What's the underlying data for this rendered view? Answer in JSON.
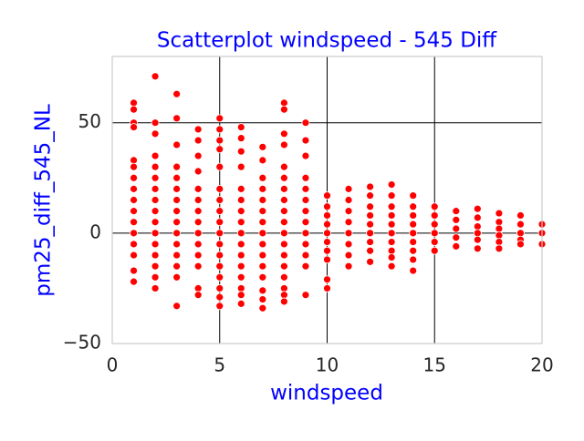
{
  "chart_data": {
    "type": "scatter",
    "title": "Scatterplot windspeed - 545 Diff",
    "x_label": "windspeed",
    "y_label": "pm25_diff_545_NL",
    "color": "#ff0000",
    "grid": true,
    "xlim": [
      0,
      20
    ],
    "ylim": [
      -50,
      80
    ],
    "xticks": [
      0,
      5,
      10,
      15,
      20
    ],
    "yticks": [
      {
        "value": -50,
        "label": "−50"
      },
      0,
      50
    ],
    "x": [
      1,
      1,
      1,
      1,
      1,
      1,
      1,
      1,
      1,
      1,
      1,
      1,
      1,
      1,
      1,
      1,
      2,
      2,
      2,
      2,
      2,
      2,
      2,
      2,
      2,
      2,
      2,
      2,
      2,
      2,
      2,
      2,
      3,
      3,
      3,
      3,
      3,
      3,
      3,
      3,
      3,
      3,
      3,
      3,
      3,
      3,
      3,
      4,
      4,
      4,
      4,
      4,
      4,
      4,
      4,
      4,
      4,
      4,
      4,
      4,
      4,
      5,
      5,
      5,
      5,
      5,
      5,
      5,
      5,
      5,
      5,
      5,
      5,
      5,
      5,
      5,
      5,
      5,
      6,
      6,
      6,
      6,
      6,
      6,
      6,
      6,
      6,
      6,
      6,
      6,
      6,
      6,
      6,
      6,
      7,
      7,
      7,
      7,
      7,
      7,
      7,
      7,
      7,
      7,
      7,
      7,
      7,
      7,
      7,
      8,
      8,
      8,
      8,
      8,
      8,
      8,
      8,
      8,
      8,
      8,
      8,
      8,
      8,
      8,
      8,
      8,
      8,
      9,
      9,
      9,
      9,
      9,
      9,
      9,
      9,
      9,
      9,
      9,
      9,
      9,
      10,
      10,
      10,
      10,
      10,
      10,
      10,
      10,
      10,
      10,
      11,
      11,
      11,
      11,
      11,
      11,
      11,
      11,
      12,
      12,
      12,
      12,
      12,
      12,
      12,
      12,
      12,
      13,
      13,
      13,
      13,
      13,
      13,
      13,
      13,
      13,
      13,
      14,
      14,
      14,
      14,
      14,
      14,
      14,
      14,
      14,
      15,
      15,
      15,
      15,
      15,
      15,
      16,
      16,
      16,
      16,
      16,
      17,
      17,
      17,
      17,
      17,
      17,
      18,
      18,
      18,
      18,
      18,
      18,
      19,
      19,
      19,
      19,
      19,
      20,
      20,
      20
    ],
    "y": [
      59,
      56,
      50,
      48,
      33,
      30,
      25,
      20,
      15,
      10,
      5,
      0,
      -5,
      -10,
      -17,
      -22,
      71,
      50,
      45,
      35,
      30,
      25,
      20,
      15,
      10,
      5,
      0,
      -5,
      -10,
      -15,
      -20,
      -25,
      63,
      52,
      40,
      30,
      25,
      20,
      15,
      10,
      5,
      0,
      -5,
      -10,
      -15,
      -20,
      -33,
      47,
      42,
      35,
      28,
      20,
      15,
      10,
      5,
      0,
      -5,
      -10,
      -15,
      -25,
      -28,
      52,
      47,
      42,
      38,
      30,
      20,
      15,
      10,
      5,
      0,
      -5,
      -10,
      -15,
      -20,
      -25,
      -29,
      -33,
      48,
      43,
      37,
      30,
      20,
      15,
      10,
      5,
      0,
      -5,
      -10,
      -15,
      -20,
      -25,
      -28,
      -32,
      39,
      33,
      25,
      20,
      15,
      10,
      5,
      0,
      -5,
      -10,
      -15,
      -20,
      -26,
      -30,
      -34,
      59,
      56,
      45,
      40,
      30,
      25,
      20,
      15,
      10,
      5,
      0,
      -5,
      -10,
      -15,
      -20,
      -25,
      -28,
      -31,
      50,
      42,
      35,
      25,
      20,
      15,
      10,
      5,
      0,
      -5,
      -10,
      -15,
      -28,
      17,
      12,
      8,
      4,
      0,
      -4,
      -8,
      -12,
      -21,
      -25,
      20,
      15,
      10,
      5,
      0,
      -5,
      -10,
      -15,
      21,
      17,
      12,
      8,
      4,
      0,
      -4,
      -8,
      -13,
      22,
      17,
      12,
      8,
      4,
      0,
      -4,
      -8,
      -11,
      -15,
      17,
      12,
      8,
      4,
      0,
      -4,
      -8,
      -12,
      -17,
      12,
      8,
      4,
      0,
      -4,
      -8,
      10,
      6,
      2,
      -2,
      -6,
      11,
      7,
      3,
      0,
      -3,
      -7,
      9,
      5,
      2,
      -1,
      -4,
      -7,
      8,
      4,
      0,
      -3,
      -5,
      4,
      0,
      -5
    ]
  }
}
